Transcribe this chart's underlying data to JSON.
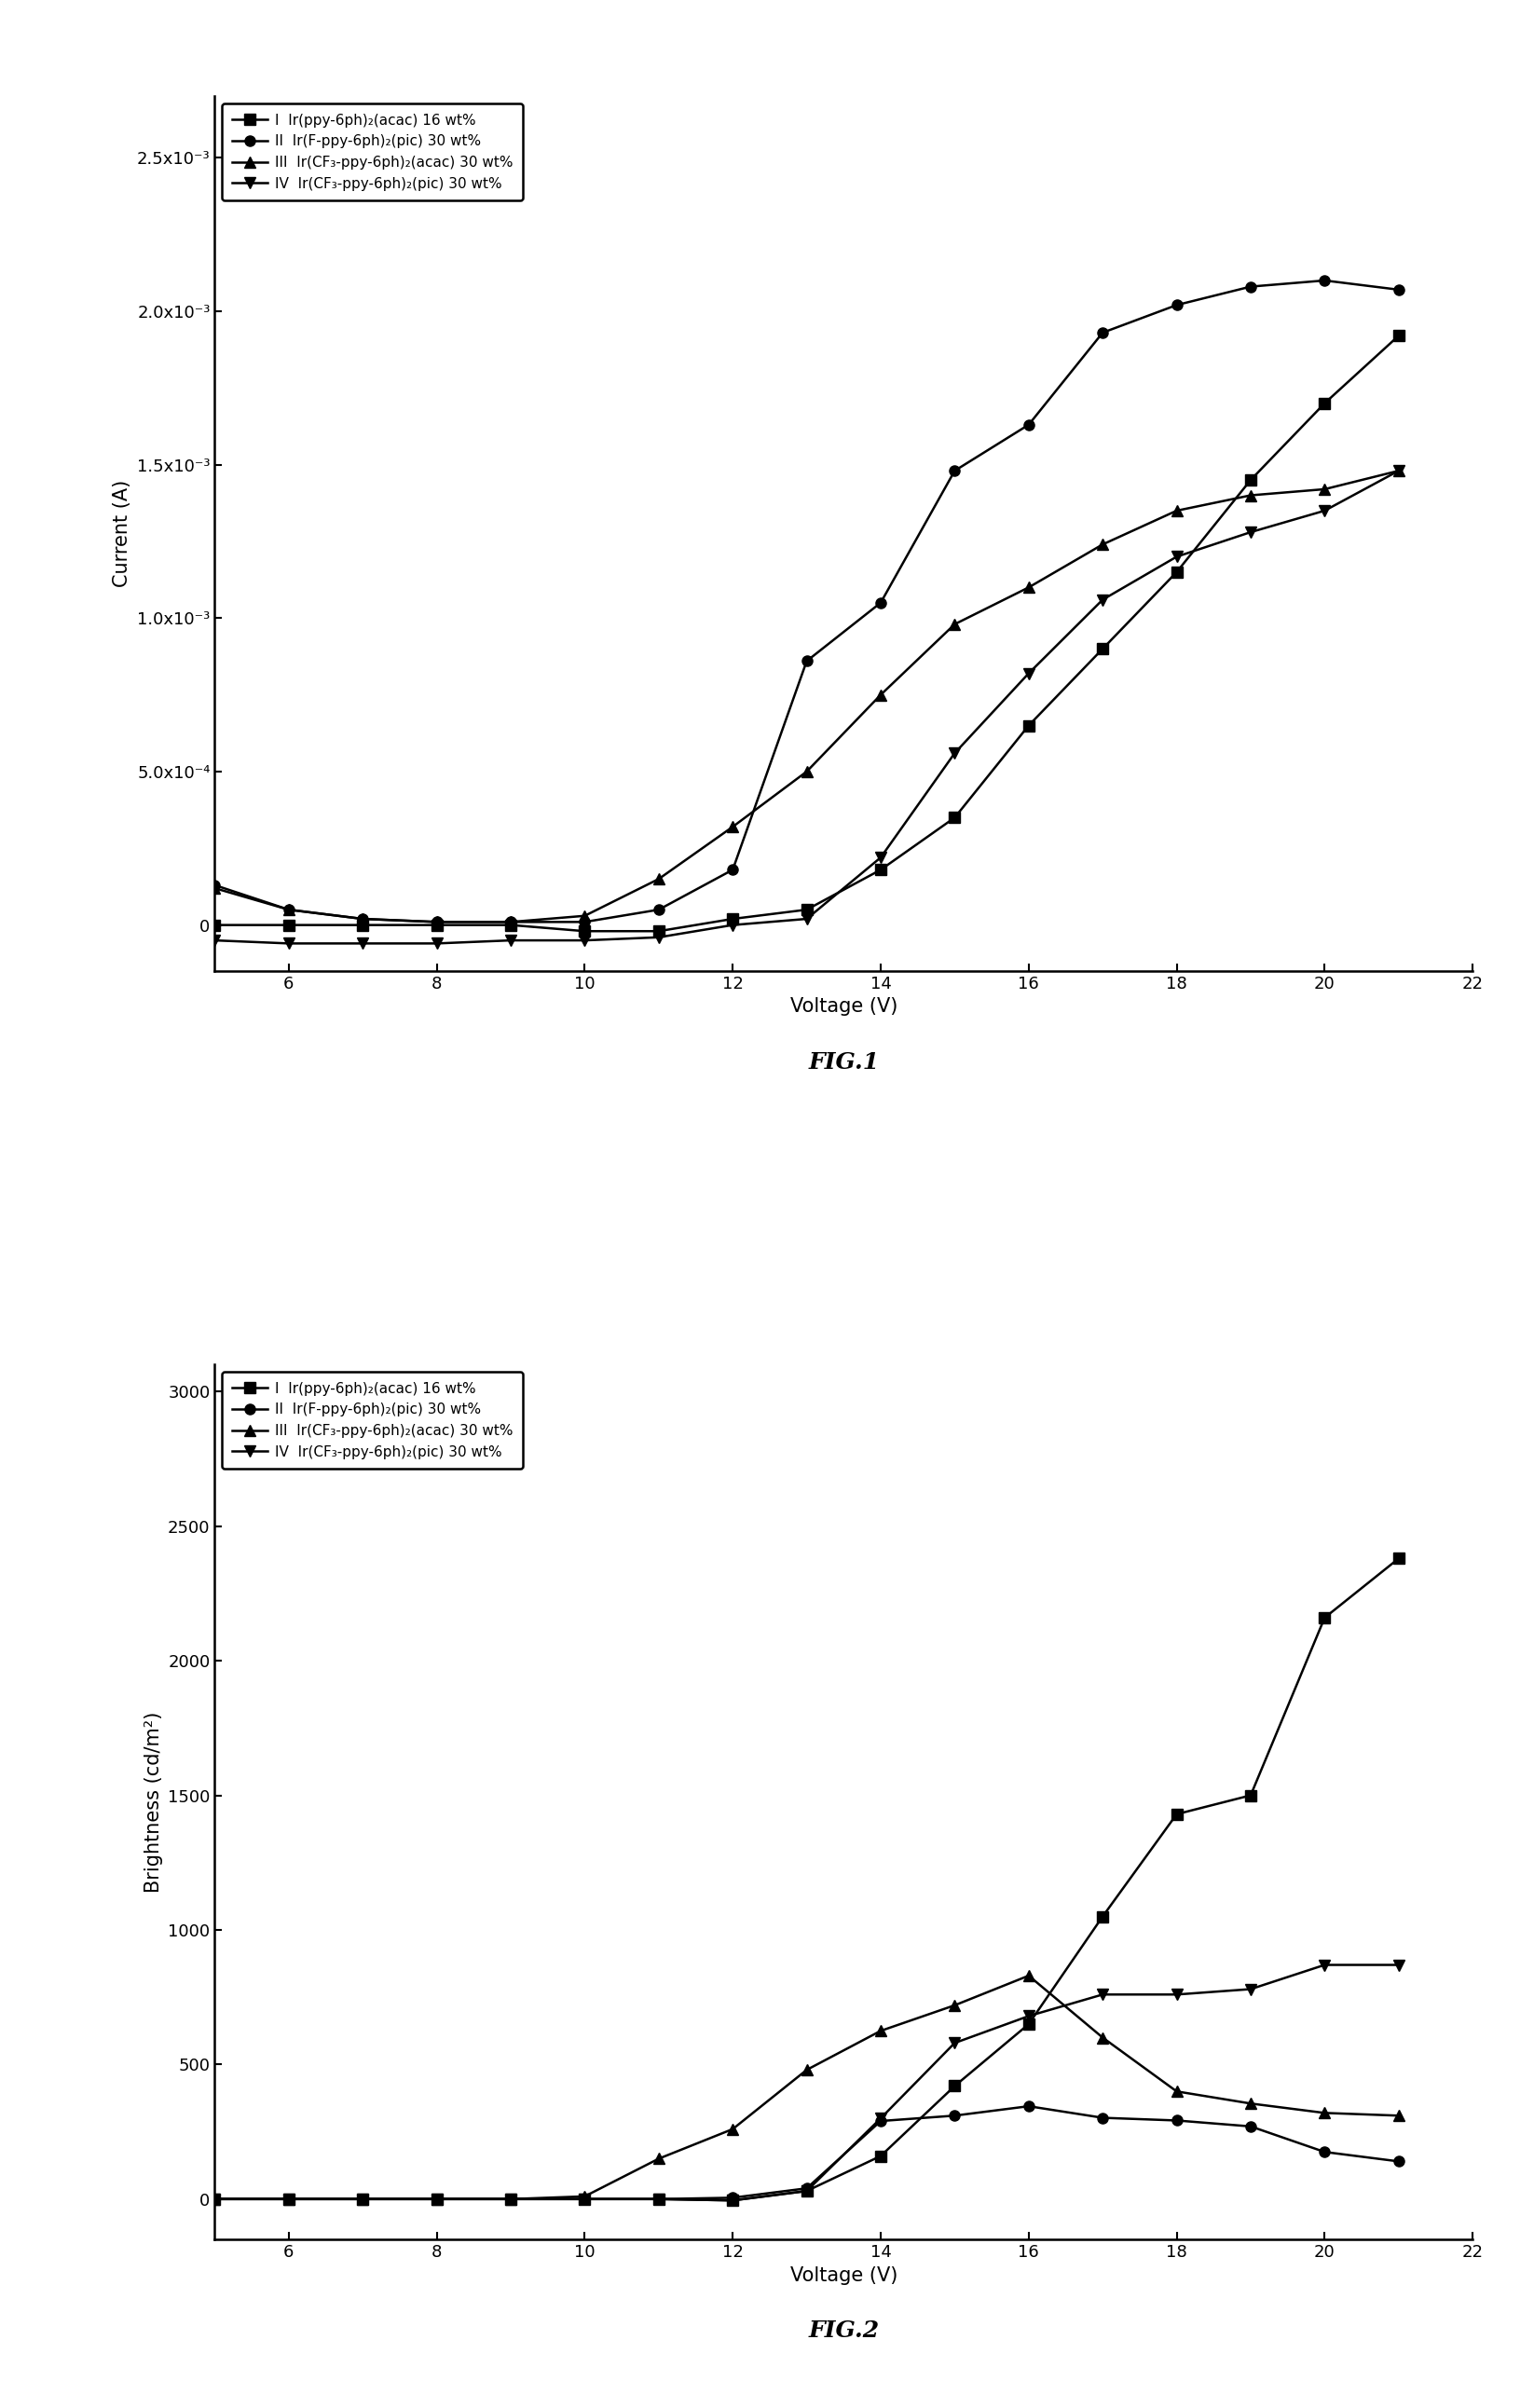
{
  "fig1": {
    "xlabel": "Voltage (V)",
    "ylabel": "Current (A)",
    "xlim": [
      5,
      22
    ],
    "ylim": [
      -0.00015,
      0.0027
    ],
    "ytick_vals": [
      0.0,
      0.0005,
      0.001,
      0.0015,
      0.002,
      0.0025
    ],
    "ytick_labels": [
      "0",
      "5.0x10⁻⁴",
      "1.0x10⁻³",
      "1.5x10⁻³",
      "2.0x10⁻³",
      "2.5x10⁻³"
    ],
    "xticks": [
      6,
      8,
      10,
      12,
      14,
      16,
      18,
      20,
      22
    ],
    "caption": "FIG.1",
    "series": [
      {
        "label": "I  Ir(ppy-6ph)₂(acac) 16 wt%",
        "marker": "s",
        "x": [
          5,
          6,
          7,
          8,
          9,
          10,
          11,
          12,
          13,
          14,
          15,
          16,
          17,
          18,
          19,
          20,
          21
        ],
        "y": [
          0.0,
          0.0,
          0.0,
          0.0,
          0.0,
          -2e-05,
          -2e-05,
          2e-05,
          5e-05,
          0.00018,
          0.00035,
          0.00065,
          0.0009,
          0.00115,
          0.00145,
          0.0017,
          0.00192
        ]
      },
      {
        "label": "II  Ir(F-ppy-6ph)₂(pic) 30 wt%",
        "marker": "o",
        "x": [
          5,
          6,
          7,
          8,
          9,
          10,
          11,
          12,
          13,
          14,
          15,
          16,
          17,
          18,
          19,
          20,
          21
        ],
        "y": [
          0.00013,
          5e-05,
          2e-05,
          1e-05,
          1e-05,
          1e-05,
          5e-05,
          0.00018,
          0.00086,
          0.00105,
          0.00148,
          0.00163,
          0.00193,
          0.00202,
          0.00208,
          0.0021,
          0.00207
        ]
      },
      {
        "label": "III  Ir(CF₃-ppy-6ph)₂(acac) 30 wt%",
        "marker": "^",
        "x": [
          5,
          6,
          7,
          8,
          9,
          10,
          11,
          12,
          13,
          14,
          15,
          16,
          17,
          18,
          19,
          20,
          21
        ],
        "y": [
          0.00012,
          5e-05,
          2e-05,
          1e-05,
          1e-05,
          3e-05,
          0.00015,
          0.00032,
          0.0005,
          0.00075,
          0.00098,
          0.0011,
          0.00124,
          0.00135,
          0.0014,
          0.00142,
          0.00148
        ]
      },
      {
        "label": "IV  Ir(CF₃-ppy-6ph)₂(pic) 30 wt%",
        "marker": "v",
        "x": [
          5,
          6,
          7,
          8,
          9,
          10,
          11,
          12,
          13,
          14,
          15,
          16,
          17,
          18,
          19,
          20,
          21
        ],
        "y": [
          -5e-05,
          -6e-05,
          -6e-05,
          -6e-05,
          -5e-05,
          -5e-05,
          -4e-05,
          0.0,
          2e-05,
          0.00022,
          0.00056,
          0.00082,
          0.00106,
          0.0012,
          0.00128,
          0.00135,
          0.00148
        ]
      }
    ]
  },
  "fig2": {
    "xlabel": "Voltage (V)",
    "ylabel": "Brightness (cd/m²)",
    "xlim": [
      5,
      22
    ],
    "ylim": [
      -150,
      3100
    ],
    "yticks": [
      0,
      500,
      1000,
      1500,
      2000,
      2500,
      3000
    ],
    "xticks": [
      6,
      8,
      10,
      12,
      14,
      16,
      18,
      20,
      22
    ],
    "caption": "FIG.2",
    "series": [
      {
        "label": "I  Ir(ppy-6ph)₂(acac) 16 wt%",
        "marker": "s",
        "x": [
          5,
          6,
          7,
          8,
          9,
          10,
          11,
          12,
          13,
          14,
          15,
          16,
          17,
          18,
          19,
          20,
          21
        ],
        "y": [
          0,
          0,
          0,
          0,
          0,
          0,
          0,
          -5,
          30,
          160,
          420,
          650,
          1050,
          1430,
          1500,
          2160,
          2380
        ]
      },
      {
        "label": "II  Ir(F-ppy-6ph)₂(pic) 30 wt%",
        "marker": "o",
        "x": [
          5,
          6,
          7,
          8,
          9,
          10,
          11,
          12,
          13,
          14,
          15,
          16,
          17,
          18,
          19,
          20,
          21
        ],
        "y": [
          0,
          0,
          0,
          0,
          0,
          0,
          0,
          5,
          40,
          290,
          310,
          345,
          302,
          292,
          270,
          175,
          140
        ]
      },
      {
        "label": "III  Ir(CF₃-ppy-6ph)₂(acac) 30 wt%",
        "marker": "^",
        "x": [
          5,
          6,
          7,
          8,
          9,
          10,
          11,
          12,
          13,
          14,
          15,
          16,
          17,
          18,
          19,
          20,
          21
        ],
        "y": [
          0,
          0,
          0,
          0,
          0,
          10,
          150,
          260,
          480,
          625,
          720,
          830,
          600,
          400,
          355,
          320,
          310
        ]
      },
      {
        "label": "IV  Ir(CF₃-ppy-6ph)₂(pic) 30 wt%",
        "marker": "v",
        "x": [
          5,
          6,
          7,
          8,
          9,
          10,
          11,
          12,
          13,
          14,
          15,
          16,
          17,
          18,
          19,
          20,
          21
        ],
        "y": [
          0,
          0,
          0,
          0,
          0,
          0,
          0,
          -5,
          30,
          300,
          580,
          680,
          760,
          760,
          780,
          870,
          870
        ]
      }
    ]
  },
  "font_family": "DejaVu Sans",
  "tick_fontsize": 13,
  "label_fontsize": 15,
  "legend_fontsize": 11,
  "caption_fontsize": 18,
  "linewidth": 1.8,
  "markersize": 8
}
